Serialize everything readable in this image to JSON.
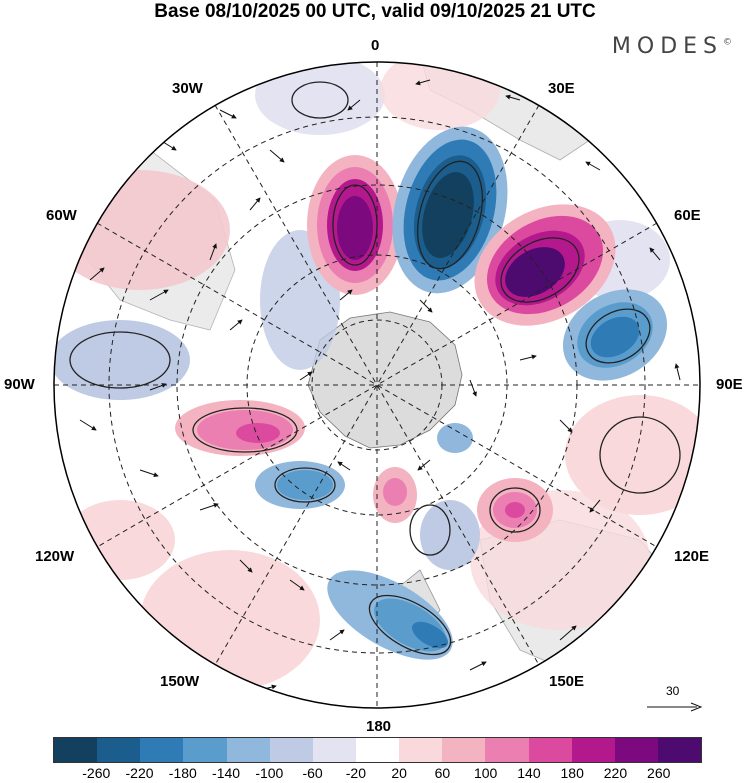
{
  "title": "Base 08/10/2025 00 UTC, valid 09/10/2025 21 UTC",
  "brand": "MODES",
  "brand_mark": "©",
  "labels": {
    "lon_0": "0",
    "lon_30w": "30W",
    "lon_30e": "30E",
    "lon_60w": "60W",
    "lon_60e": "60E",
    "lon_90w": "90W",
    "lon_90e": "90E",
    "lon_120w": "120W",
    "lon_120e": "120E",
    "lon_150w": "150W",
    "lon_150e": "150E",
    "lon_180": "180"
  },
  "vector_scale": "30",
  "colorbar": {
    "ticks": [
      "-260",
      "-220",
      "-180",
      "-140",
      "-100",
      "-60",
      "-20",
      "20",
      "60",
      "100",
      "140",
      "180",
      "220",
      "260"
    ],
    "colors": [
      "#13405e",
      "#1b5e8d",
      "#2f7bb5",
      "#5a9dcd",
      "#8fb8dc",
      "#bfcbe4",
      "#e4e3f1",
      "#ffffff",
      "#f9d9dc",
      "#f4b3c1",
      "#eb7fb1",
      "#dc4aa0",
      "#b3198d",
      "#7c0a7e",
      "#4d0a6f"
    ]
  },
  "colors": {
    "land": "#d9d9d9",
    "coast": "#666666"
  }
}
